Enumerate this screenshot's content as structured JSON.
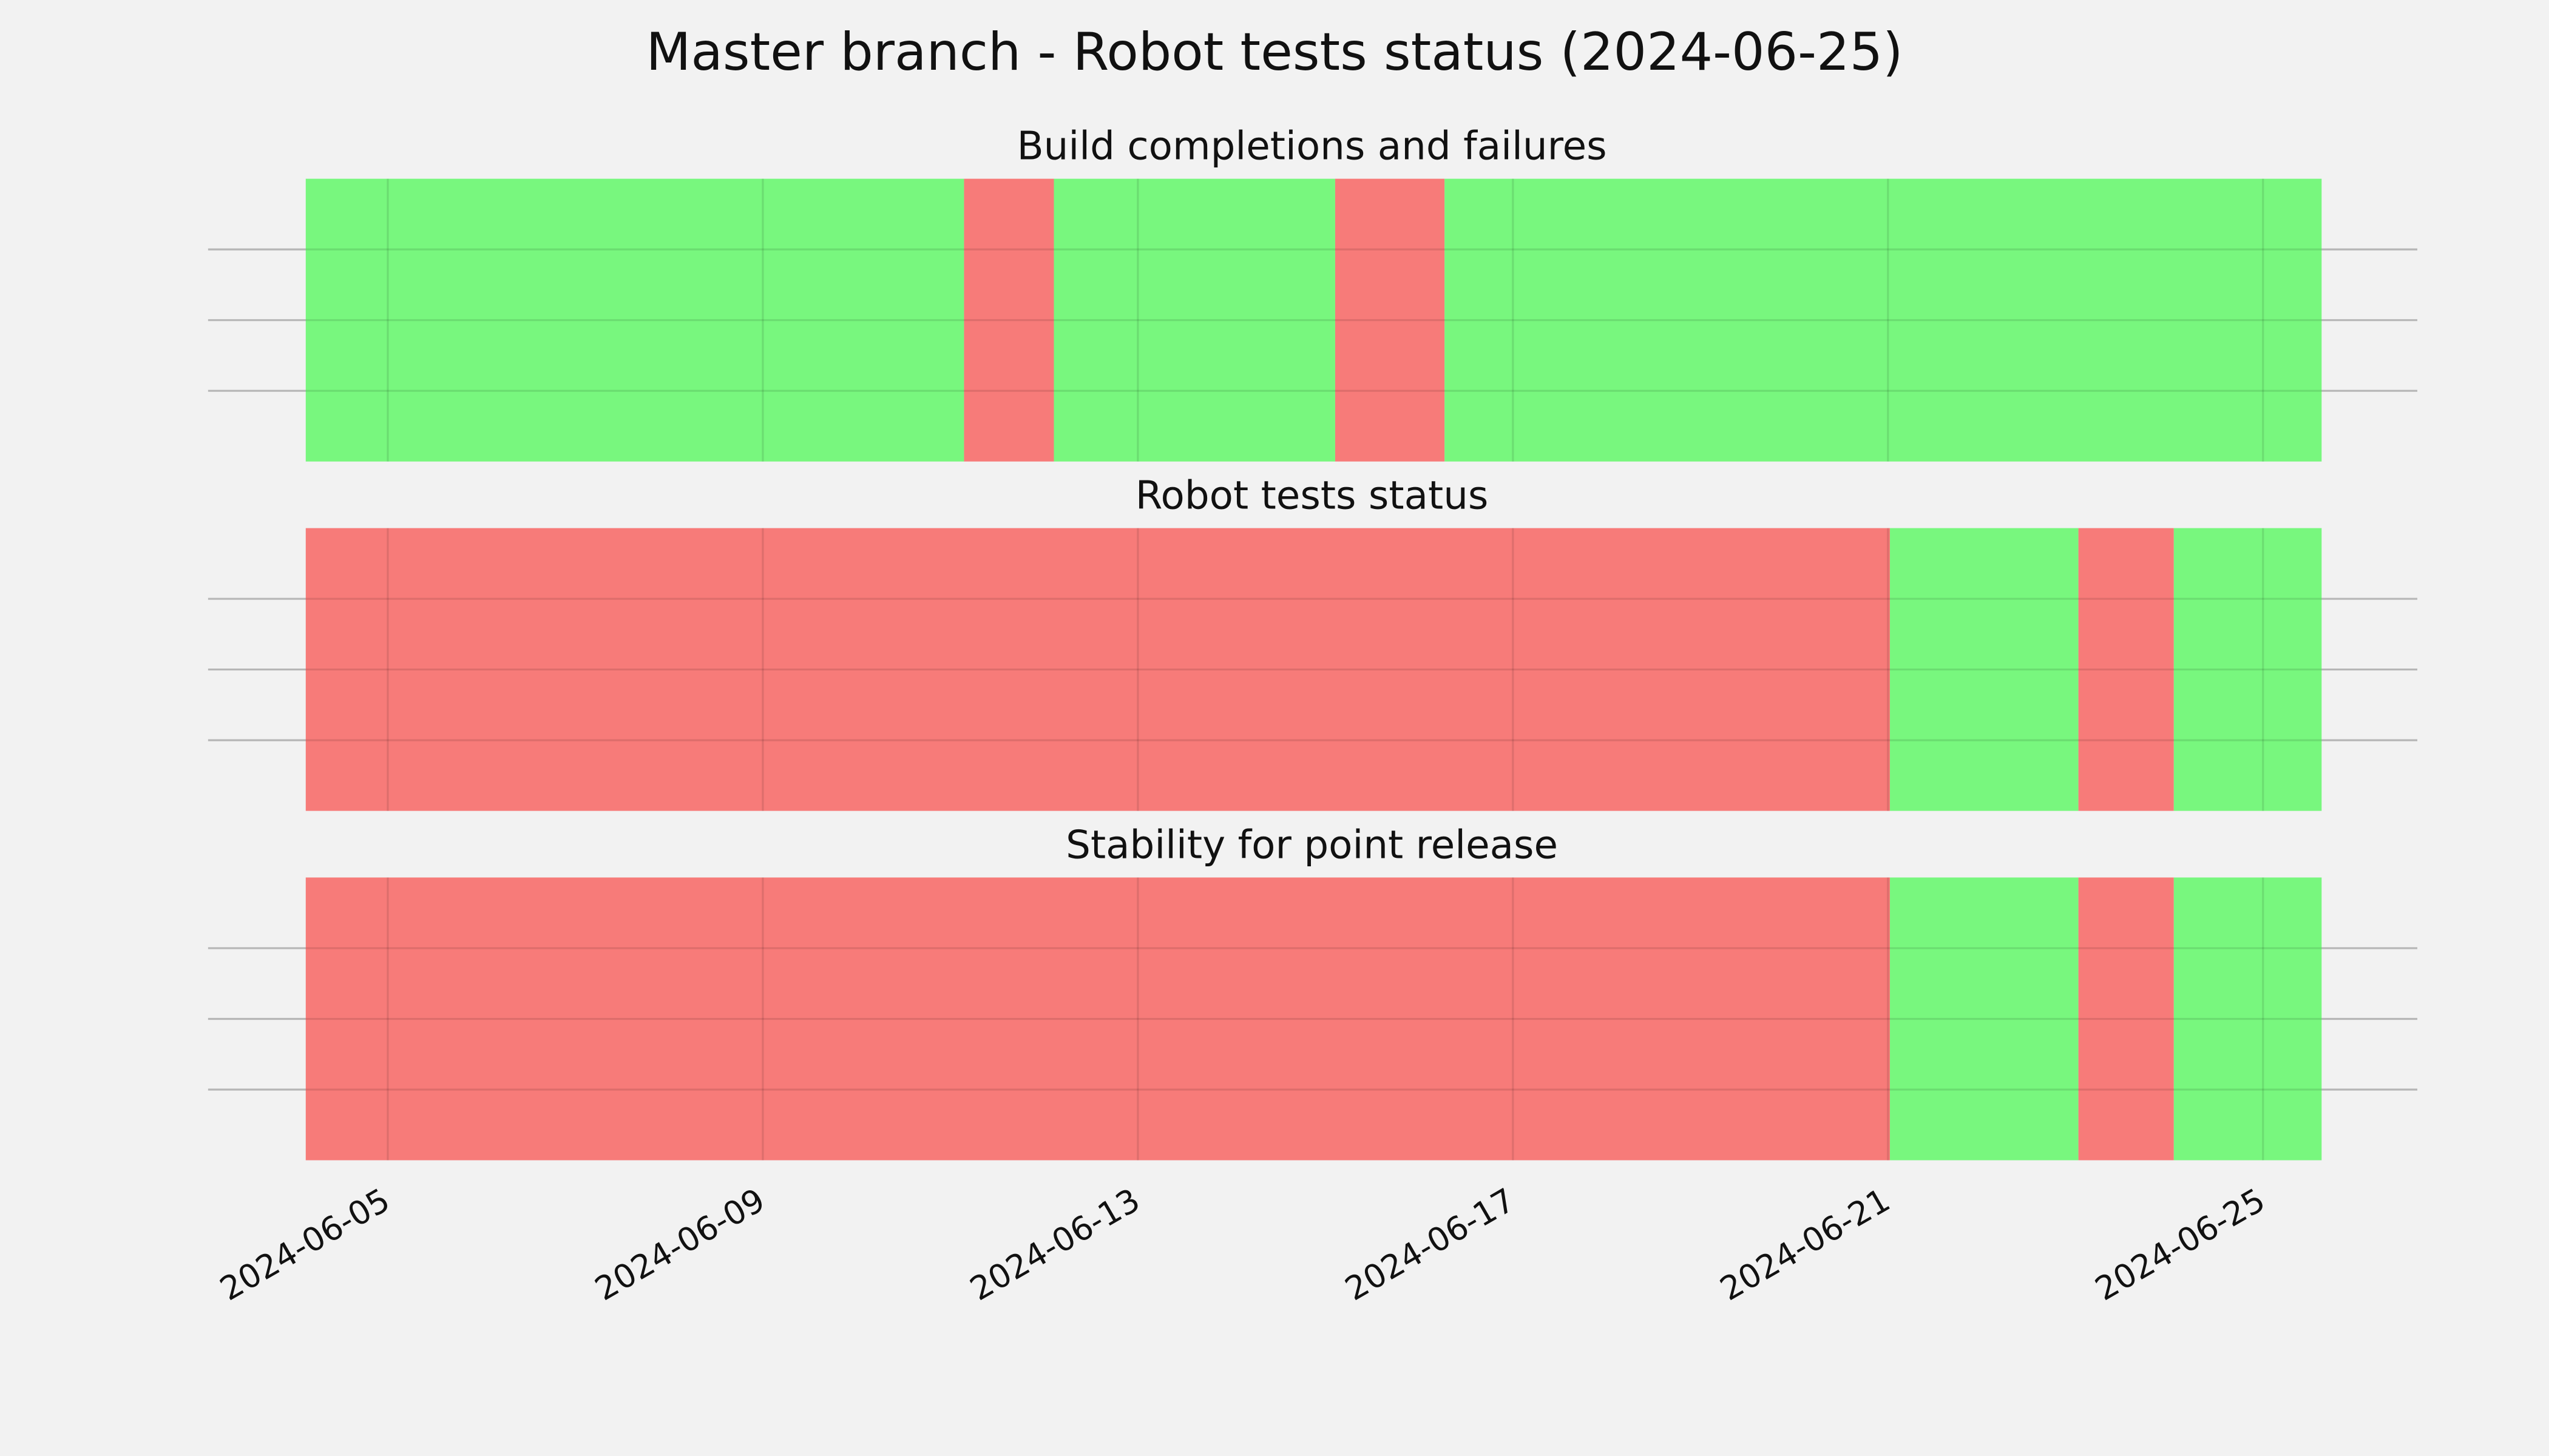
{
  "chart_data": {
    "type": "timeline",
    "title": "Master branch - Robot tests status (2024-06-25)",
    "xlim": [
      "2024-06-03T02:00Z",
      "2024-06-26T15:30Z"
    ],
    "xticks": [
      "2024-06-05",
      "2024-06-09",
      "2024-06-13",
      "2024-06-17",
      "2024-06-21",
      "2024-06-25"
    ],
    "ylim": [
      0,
      1
    ],
    "yticks": [
      0.25,
      0.5,
      0.75
    ],
    "grid": true,
    "panels": [
      {
        "title": "Build completions and failures",
        "segments": [
          {
            "start": "2024-06-04T03:00Z",
            "end": "2024-06-11T03:30Z",
            "color": "#74f77a"
          },
          {
            "start": "2024-06-11T03:30Z",
            "end": "2024-06-12T02:30Z",
            "color": "#f77775"
          },
          {
            "start": "2024-06-12T02:30Z",
            "end": "2024-06-15T02:30Z",
            "color": "#74f77a"
          },
          {
            "start": "2024-06-15T02:30Z",
            "end": "2024-06-16T06:30Z",
            "color": "#f77775"
          },
          {
            "start": "2024-06-16T06:30Z",
            "end": "2024-06-25T15:00Z",
            "color": "#74f77a"
          }
        ]
      },
      {
        "title": "Robot tests status",
        "segments": [
          {
            "start": "2024-06-04T03:00Z",
            "end": "2024-06-21T00:30Z",
            "color": "#f77775"
          },
          {
            "start": "2024-06-21T00:30Z",
            "end": "2024-06-23T00:45Z",
            "color": "#74f77a"
          },
          {
            "start": "2024-06-23T00:45Z",
            "end": "2024-06-24T01:10Z",
            "color": "#f77775"
          },
          {
            "start": "2024-06-24T01:10Z",
            "end": "2024-06-25T15:00Z",
            "color": "#74f77a"
          }
        ]
      },
      {
        "title": "Stability for point release",
        "segments": [
          {
            "start": "2024-06-04T03:00Z",
            "end": "2024-06-21T00:30Z",
            "color": "#f77775"
          },
          {
            "start": "2024-06-21T00:30Z",
            "end": "2024-06-23T00:45Z",
            "color": "#74f77a"
          },
          {
            "start": "2024-06-23T00:45Z",
            "end": "2024-06-24T01:10Z",
            "color": "#f77775"
          },
          {
            "start": "2024-06-24T01:10Z",
            "end": "2024-06-25T15:00Z",
            "color": "#74f77a"
          }
        ]
      }
    ]
  }
}
